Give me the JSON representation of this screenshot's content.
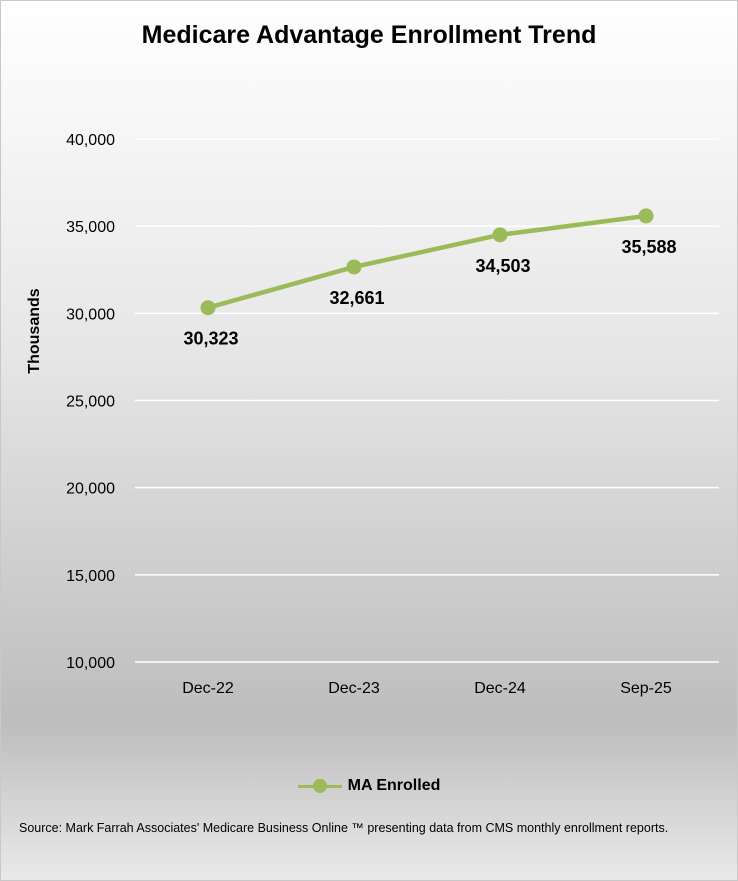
{
  "colors": {
    "series": "#9bbb59",
    "grid": "#ffffff"
  },
  "source": "Source: Mark Farrah Associates' Medicare Business Online ™ presenting data from CMS monthly enrollment reports.",
  "chart_data": {
    "type": "line",
    "title": "Medicare Advantage Enrollment Trend",
    "ylabel": "Thousands",
    "xlabel": "",
    "categories": [
      "Dec-22",
      "Dec-23",
      "Dec-24",
      "Sep-25"
    ],
    "series": [
      {
        "name": "MA Enrolled",
        "values": [
          30323,
          32661,
          34503,
          35588
        ],
        "labels": [
          "30,323",
          "32,661",
          "34,503",
          "35,588"
        ]
      }
    ],
    "ylim": [
      10000,
      40000
    ],
    "yticks": [
      10000,
      15000,
      20000,
      25000,
      30000,
      35000,
      40000
    ],
    "ytick_labels": [
      "10,000",
      "15,000",
      "20,000",
      "25,000",
      "30,000",
      "35,000",
      "40,000"
    ],
    "grid": true,
    "legend": "bottom",
    "markers": true,
    "data_labels": "below"
  }
}
